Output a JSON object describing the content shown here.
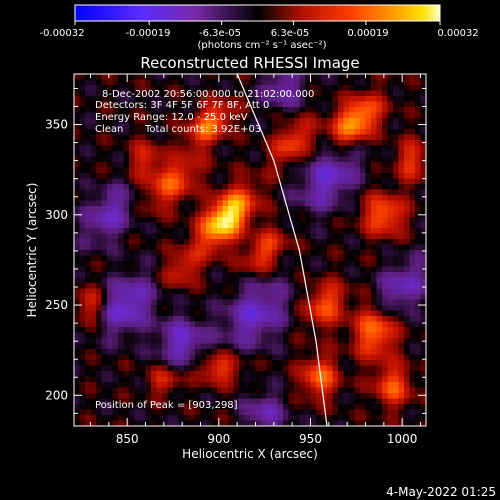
{
  "chart_data": {
    "type": "heatmap",
    "title": "Reconstructed RHESSI Image",
    "xlabel": "Heliocentric X (arcsec)",
    "ylabel": "Heliocentric Y (arcsec)",
    "xlim": [
      821,
      1013
    ],
    "ylim": [
      183,
      378
    ],
    "x_ticks": [
      850,
      900,
      950,
      1000
    ],
    "y_ticks": [
      200,
      250,
      300,
      350
    ],
    "grid": false,
    "colorbar": {
      "tick_labels": [
        "-0.00032",
        "-0.00019",
        "-6.3e-05",
        "6.3e-05",
        "0.00019",
        "0.00032"
      ],
      "tick_values": [
        -0.00032,
        -0.00019,
        -6.3e-05,
        6.3e-05,
        0.00019,
        0.00032
      ],
      "range": [
        -0.00032,
        0.00032
      ],
      "units_label": "(photons cm⁻² s⁻¹ asec⁻²)",
      "colormap": "blue-purple-black-red-orange-yellow-white"
    },
    "annotations": {
      "time_range": "8-Dec-2002 20:56:00.000 to 21:02:00.000",
      "detectors": "Detectors: 3F 4F 5F 6F 7F 8F, Att 0",
      "energy": "Energy Range: 12.0 - 25.0 keV",
      "clean": "Clean",
      "total_counts": "Total counts: 3.92E+03",
      "peak": "Position of Peak = [903,298]"
    },
    "peak_position": [
      903,
      298
    ],
    "limb_curve": [
      [
        910,
        378
      ],
      [
        930,
        330
      ],
      [
        944,
        280
      ],
      [
        953,
        230
      ],
      [
        959,
        183
      ]
    ],
    "sources": [
      {
        "x": 904,
        "y": 298,
        "amp": 1.0,
        "sx": 7,
        "sy": 13,
        "rot": -40
      },
      {
        "x": 895,
        "y": 350,
        "amp": 0.6,
        "sx": 6,
        "sy": 10,
        "rot": -45
      },
      {
        "x": 975,
        "y": 352,
        "amp": 0.75,
        "sx": 7,
        "sy": 11,
        "rot": -45
      },
      {
        "x": 990,
        "y": 300,
        "amp": 0.55,
        "sx": 8,
        "sy": 8,
        "rot": 0
      },
      {
        "x": 925,
        "y": 280,
        "amp": 0.45,
        "sx": 6,
        "sy": 10,
        "rot": -40
      },
      {
        "x": 958,
        "y": 250,
        "amp": 0.5,
        "sx": 7,
        "sy": 9,
        "rot": -30
      },
      {
        "x": 985,
        "y": 235,
        "amp": 0.6,
        "sx": 8,
        "sy": 10,
        "rot": 0
      },
      {
        "x": 955,
        "y": 210,
        "amp": 0.55,
        "sx": 7,
        "sy": 8,
        "rot": 0
      },
      {
        "x": 995,
        "y": 205,
        "amp": 0.5,
        "sx": 7,
        "sy": 8,
        "rot": 0
      },
      {
        "x": 875,
        "y": 318,
        "amp": 0.5,
        "sx": 7,
        "sy": 12,
        "rot": -45
      },
      {
        "x": 860,
        "y": 330,
        "amp": 0.35,
        "sx": 6,
        "sy": 8,
        "rot": 0
      },
      {
        "x": 880,
        "y": 270,
        "amp": 0.35,
        "sx": 6,
        "sy": 8,
        "rot": -40
      },
      {
        "x": 900,
        "y": 215,
        "amp": 0.45,
        "sx": 8,
        "sy": 6,
        "rot": 0
      },
      {
        "x": 870,
        "y": 208,
        "amp": 0.35,
        "sx": 6,
        "sy": 5,
        "rot": 0
      },
      {
        "x": 940,
        "y": 340,
        "amp": 0.45,
        "sx": 6,
        "sy": 10,
        "rot": -40
      },
      {
        "x": 1005,
        "y": 330,
        "amp": 0.4,
        "sx": 6,
        "sy": 8,
        "rot": 0
      },
      {
        "x": 830,
        "y": 250,
        "amp": 0.35,
        "sx": 6,
        "sy": 7,
        "rot": 0
      },
      {
        "x": 920,
        "y": 245,
        "amp": -0.45,
        "sx": 10,
        "sy": 14,
        "rot": -40
      },
      {
        "x": 850,
        "y": 250,
        "amp": -0.5,
        "sx": 9,
        "sy": 12,
        "rot": -35
      },
      {
        "x": 840,
        "y": 300,
        "amp": -0.4,
        "sx": 8,
        "sy": 12,
        "rot": -35
      },
      {
        "x": 880,
        "y": 230,
        "amp": -0.45,
        "sx": 9,
        "sy": 9,
        "rot": -35
      },
      {
        "x": 960,
        "y": 320,
        "amp": -0.45,
        "sx": 9,
        "sy": 14,
        "rot": -40
      },
      {
        "x": 1000,
        "y": 260,
        "amp": -0.4,
        "sx": 8,
        "sy": 12,
        "rot": -40
      },
      {
        "x": 935,
        "y": 370,
        "amp": -0.35,
        "sx": 8,
        "sy": 8,
        "rot": 0
      },
      {
        "x": 925,
        "y": 190,
        "amp": -0.35,
        "sx": 8,
        "sy": 8,
        "rot": 0
      }
    ]
  },
  "footer": {
    "timestamp": "4-May-2022 01:25"
  }
}
